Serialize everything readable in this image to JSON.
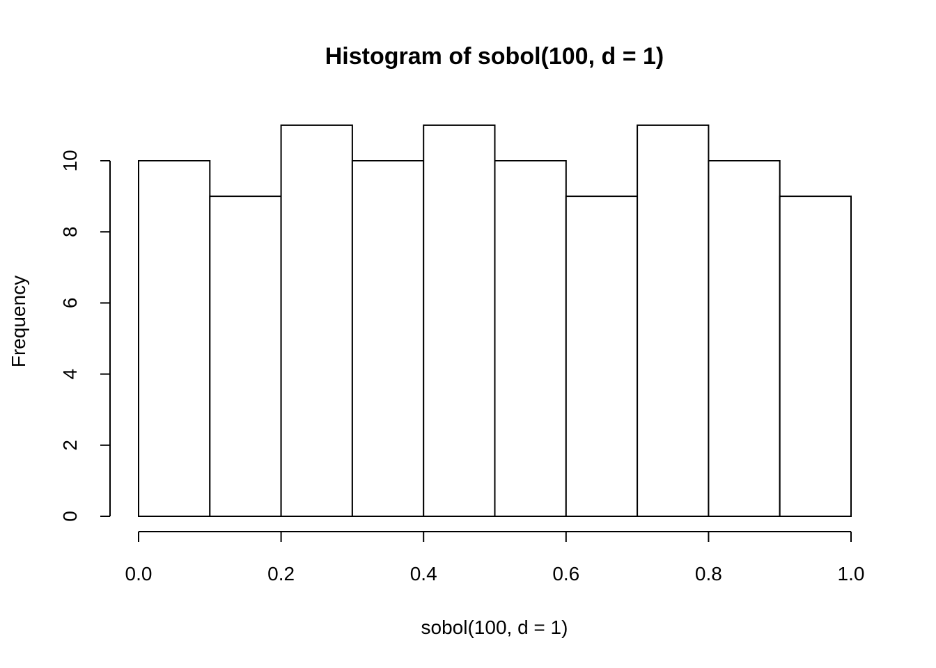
{
  "chart_data": {
    "type": "bar",
    "title": "Histogram of sobol(100, d = 1)",
    "xlabel": "sobol(100, d = 1)",
    "ylabel": "Frequency",
    "bins": [
      {
        "x0": 0.0,
        "x1": 0.1,
        "count": 10
      },
      {
        "x0": 0.1,
        "x1": 0.2,
        "count": 9
      },
      {
        "x0": 0.2,
        "x1": 0.3,
        "count": 11
      },
      {
        "x0": 0.3,
        "x1": 0.4,
        "count": 10
      },
      {
        "x0": 0.4,
        "x1": 0.5,
        "count": 11
      },
      {
        "x0": 0.5,
        "x1": 0.6,
        "count": 10
      },
      {
        "x0": 0.6,
        "x1": 0.7,
        "count": 9
      },
      {
        "x0": 0.7,
        "x1": 0.8,
        "count": 11
      },
      {
        "x0": 0.8,
        "x1": 0.9,
        "count": 10
      },
      {
        "x0": 0.9,
        "x1": 1.0,
        "count": 9
      }
    ],
    "xlim": [
      0,
      1
    ],
    "ylim": [
      0,
      11
    ],
    "x_ticks": [
      0.0,
      0.2,
      0.4,
      0.6,
      0.8,
      1.0
    ],
    "x_tick_labels": [
      "0.0",
      "0.2",
      "0.4",
      "0.6",
      "0.8",
      "1.0"
    ],
    "y_ticks": [
      0,
      2,
      4,
      6,
      8,
      10
    ],
    "y_tick_labels": [
      "0",
      "2",
      "4",
      "6",
      "8",
      "10"
    ],
    "grid": false,
    "legend": "none"
  }
}
